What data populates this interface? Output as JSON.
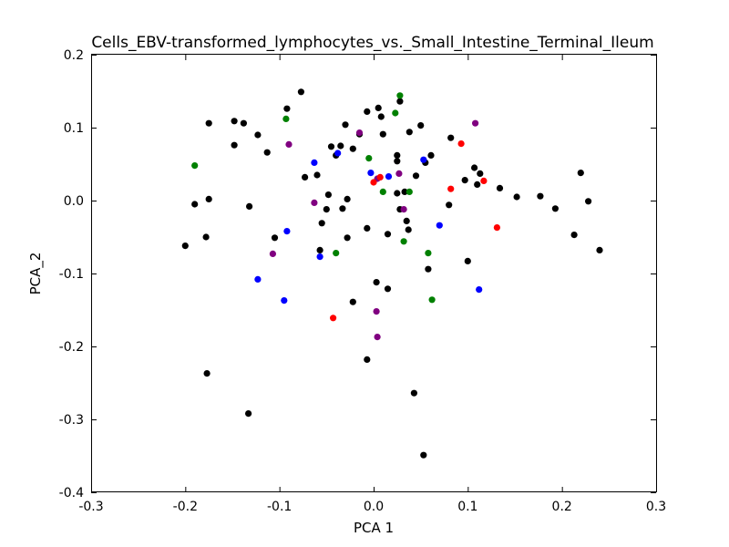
{
  "chart_data": {
    "type": "scatter",
    "title": "Cells_EBV-transformed_lymphocytes_vs._Small_Intestine_Terminal_Ileum",
    "xlabel": "PCA 1",
    "ylabel": "PCA_2",
    "xlim": [
      -0.3,
      0.3
    ],
    "ylim": [
      -0.4,
      0.2
    ],
    "xticks": [
      "-0.3",
      "-0.2",
      "-0.1",
      "0.0",
      "0.1",
      "0.2",
      "0.3"
    ],
    "yticks": [
      "-0.4",
      "-0.3",
      "-0.2",
      "-0.1",
      "0.0",
      "0.1",
      "0.2"
    ],
    "grid": false,
    "legend": "none",
    "series": [
      {
        "color": "#000000",
        "points": [
          [
            -0.2,
            -0.062
          ],
          [
            -0.19,
            -0.005
          ],
          [
            -0.178,
            -0.05
          ],
          [
            -0.175,
            0.106
          ],
          [
            -0.175,
            0.002
          ],
          [
            -0.177,
            -0.237
          ],
          [
            -0.148,
            0.109
          ],
          [
            -0.148,
            0.076
          ],
          [
            -0.138,
            0.106
          ],
          [
            -0.132,
            -0.008
          ],
          [
            -0.133,
            -0.292
          ],
          [
            -0.123,
            0.09
          ],
          [
            -0.113,
            0.066
          ],
          [
            -0.105,
            -0.051
          ],
          [
            -0.092,
            0.126
          ],
          [
            -0.077,
            0.149
          ],
          [
            -0.073,
            0.032
          ],
          [
            -0.06,
            0.035
          ],
          [
            -0.057,
            -0.068
          ],
          [
            -0.055,
            -0.031
          ],
          [
            -0.05,
            -0.012
          ],
          [
            -0.048,
            0.008
          ],
          [
            -0.045,
            0.074
          ],
          [
            -0.04,
            0.062
          ],
          [
            -0.035,
            0.075
          ],
          [
            -0.033,
            -0.011
          ],
          [
            -0.03,
            0.104
          ],
          [
            -0.028,
            0.002
          ],
          [
            -0.028,
            -0.051
          ],
          [
            -0.022,
            0.071
          ],
          [
            -0.022,
            -0.139
          ],
          [
            -0.015,
            0.091
          ],
          [
            -0.007,
            0.122
          ],
          [
            -0.007,
            -0.038
          ],
          [
            -0.007,
            -0.218
          ],
          [
            0.003,
            -0.112
          ],
          [
            0.005,
            0.127
          ],
          [
            0.008,
            0.115
          ],
          [
            0.01,
            0.091
          ],
          [
            0.015,
            -0.046
          ],
          [
            0.015,
            -0.121
          ],
          [
            0.025,
            0.062
          ],
          [
            0.025,
            0.054
          ],
          [
            0.025,
            0.01
          ],
          [
            0.028,
            0.136
          ],
          [
            0.028,
            -0.012
          ],
          [
            0.033,
            0.012
          ],
          [
            0.035,
            -0.028
          ],
          [
            0.037,
            -0.04
          ],
          [
            0.038,
            0.094
          ],
          [
            0.043,
            -0.264
          ],
          [
            0.045,
            0.034
          ],
          [
            0.05,
            0.103
          ],
          [
            0.053,
            -0.349
          ],
          [
            0.055,
            0.052
          ],
          [
            0.058,
            -0.094
          ],
          [
            0.061,
            0.062
          ],
          [
            0.082,
            0.086
          ],
          [
            0.08,
            -0.006
          ],
          [
            0.097,
            0.028
          ],
          [
            0.1,
            -0.083
          ],
          [
            0.107,
            0.045
          ],
          [
            0.11,
            0.022
          ],
          [
            0.113,
            0.037
          ],
          [
            0.134,
            0.017
          ],
          [
            0.152,
            0.005
          ],
          [
            0.177,
            0.006
          ],
          [
            0.193,
            -0.011
          ],
          [
            0.213,
            -0.047
          ],
          [
            0.22,
            0.038
          ],
          [
            0.228,
            -0.001
          ],
          [
            0.24,
            -0.068
          ]
        ]
      },
      {
        "color": "#008000",
        "points": [
          [
            -0.19,
            0.048
          ],
          [
            -0.093,
            0.112
          ],
          [
            -0.04,
            -0.072
          ],
          [
            -0.005,
            0.058
          ],
          [
            0.01,
            0.012
          ],
          [
            0.023,
            0.12
          ],
          [
            0.028,
            0.144
          ],
          [
            0.032,
            -0.056
          ],
          [
            0.038,
            0.012
          ],
          [
            0.058,
            -0.072
          ],
          [
            0.062,
            -0.136
          ]
        ]
      },
      {
        "color": "#0000ff",
        "points": [
          [
            -0.123,
            -0.108
          ],
          [
            -0.095,
            -0.137
          ],
          [
            -0.092,
            -0.042
          ],
          [
            -0.063,
            0.052
          ],
          [
            -0.057,
            -0.077
          ],
          [
            -0.038,
            0.065
          ],
          [
            -0.003,
            0.038
          ],
          [
            0.016,
            0.033
          ],
          [
            0.053,
            0.056
          ],
          [
            0.07,
            -0.034
          ],
          [
            0.112,
            -0.122
          ]
        ]
      },
      {
        "color": "#800080",
        "points": [
          [
            -0.107,
            -0.073
          ],
          [
            -0.09,
            0.077
          ],
          [
            -0.063,
            -0.003
          ],
          [
            -0.015,
            0.093
          ],
          [
            0.004,
            0.03
          ],
          [
            0.003,
            -0.152
          ],
          [
            0.004,
            -0.187
          ],
          [
            0.027,
            0.037
          ],
          [
            0.032,
            -0.012
          ],
          [
            0.108,
            0.106
          ]
        ]
      },
      {
        "color": "#ff0000",
        "points": [
          [
            -0.043,
            -0.161
          ],
          [
            0.0,
            0.025
          ],
          [
            0.007,
            0.032
          ],
          [
            0.082,
            0.016
          ],
          [
            0.093,
            0.078
          ],
          [
            0.117,
            0.027
          ],
          [
            0.131,
            -0.037
          ]
        ]
      }
    ]
  }
}
